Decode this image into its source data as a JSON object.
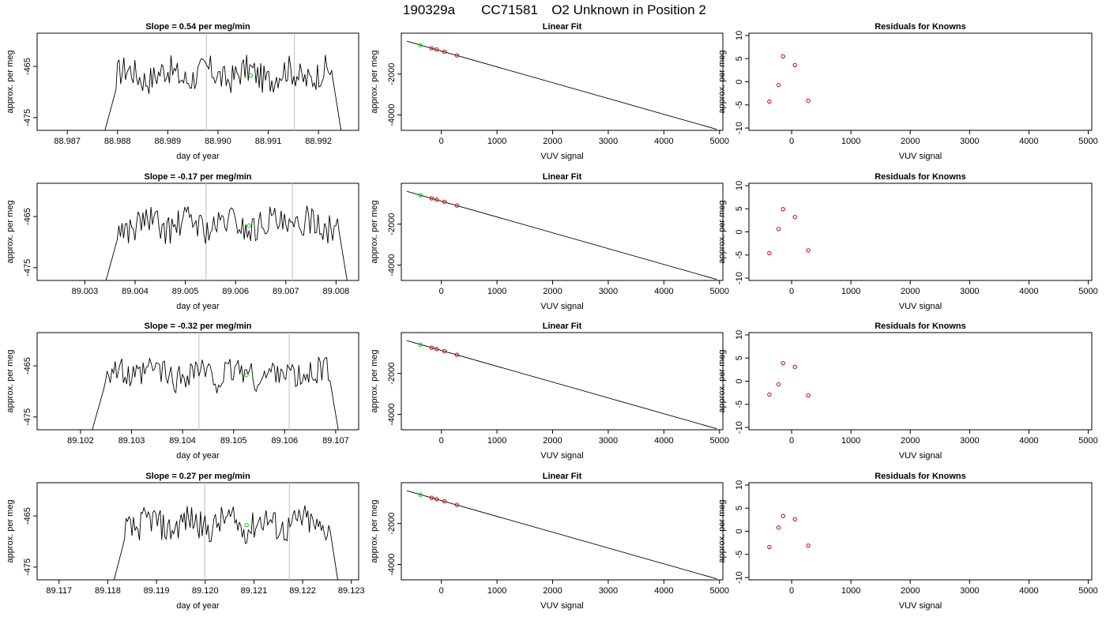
{
  "figure": {
    "title_parts": [
      "190329a",
      "CC71581",
      "O2 Unknown in Position  2"
    ]
  },
  "panel_titles": {
    "linear_fit": "Linear Fit",
    "residuals": "Residuals for Knowns"
  },
  "axis_labels": {
    "time_x": "day of year",
    "time_y": "approx. per meg",
    "fit_x": "VUV signal",
    "fit_y": "approx. per meg",
    "res_x": "VUV signal",
    "res_y": "approx. per meg"
  },
  "colors": {
    "line": "#000000",
    "known_points": "#cc0000",
    "unknown_point": "#00cc00",
    "vline": "#c8c8c8"
  },
  "chart_data": [
    {
      "row": 1,
      "time_series": {
        "type": "line",
        "title": "Slope =  0.54  per meg/min",
        "xlabel": "day of year",
        "ylabel": "approx. per meg",
        "xlim": [
          88.9864,
          88.9928
        ],
        "ylim": [
          -477.5,
          -458.5
        ],
        "xticks": [
          "88.987",
          "88.988",
          "88.989",
          "88.990",
          "88.991",
          "88.992"
        ],
        "yticks": [
          "-465",
          "-475"
        ],
        "data_start": 88.98775,
        "data_end": 88.99245,
        "vlines": [
          88.98977,
          88.99152
        ],
        "unknown_point": {
          "x": 88.99065,
          "y": -466.8
        }
      },
      "linear_fit": {
        "type": "scatter",
        "title": "Linear Fit",
        "xlabel": "VUV signal",
        "ylabel": "approx. per meg",
        "xlim": [
          -720,
          5060
        ],
        "ylim": [
          -4750,
          -5
        ],
        "xticks": [
          "0",
          "1000",
          "2000",
          "3000",
          "4000",
          "5000"
        ],
        "yticks": [
          "-2000",
          "-4000"
        ],
        "line": {
          "x": [
            -620,
            4950
          ],
          "y": [
            -400,
            -4700
          ]
        },
        "knowns": [
          {
            "x": -175,
            "y": -740
          },
          {
            "x": -85,
            "y": -805
          },
          {
            "x": 55,
            "y": -915
          },
          {
            "x": 280,
            "y": -1090
          }
        ],
        "unknown": [
          {
            "x": -375,
            "y": -590
          }
        ]
      },
      "residuals": {
        "type": "scatter",
        "title": "Residuals for Knowns",
        "xlabel": "VUV signal",
        "ylabel": "approx. per meg",
        "xlim": [
          -720,
          5060
        ],
        "ylim": [
          -10.5,
          10.5
        ],
        "xticks": [
          "0",
          "1000",
          "2000",
          "3000",
          "4000",
          "5000"
        ],
        "yticks": [
          "10",
          "5",
          "0",
          "-5",
          "-10"
        ],
        "points": [
          {
            "x": -375,
            "y": -4.3
          },
          {
            "x": -220,
            "y": -0.7
          },
          {
            "x": -145,
            "y": 5.5
          },
          {
            "x": 55,
            "y": 3.6
          },
          {
            "x": 280,
            "y": -4.1
          }
        ]
      }
    },
    {
      "row": 2,
      "time_series": {
        "type": "line",
        "title": "Slope =  -0.17  per meg/min",
        "xlabel": "day of year",
        "ylabel": "approx. per meg",
        "xlim": [
          89.00205,
          89.00845
        ],
        "ylim": [
          -477.5,
          -458.5
        ],
        "xticks": [
          "89.003",
          "89.004",
          "89.005",
          "89.006",
          "89.007",
          "89.008"
        ],
        "yticks": [
          "-465",
          "-475"
        ],
        "data_start": 89.00342,
        "data_end": 89.00822,
        "vlines": [
          89.00541,
          89.00713
        ],
        "unknown_point": {
          "x": 89.00627,
          "y": -466.8
        }
      },
      "linear_fit": {
        "type": "scatter",
        "title": "Linear Fit",
        "xlabel": "VUV signal",
        "ylabel": "approx. per meg",
        "xlim": [
          -720,
          5060
        ],
        "ylim": [
          -4750,
          -5
        ],
        "xticks": [
          "0",
          "1000",
          "2000",
          "3000",
          "4000",
          "5000"
        ],
        "yticks": [
          "-2000",
          "-4000"
        ],
        "line": {
          "x": [
            -620,
            4950
          ],
          "y": [
            -400,
            -4700
          ]
        },
        "knowns": [
          {
            "x": -175,
            "y": -740
          },
          {
            "x": -85,
            "y": -805
          },
          {
            "x": 55,
            "y": -915
          },
          {
            "x": 280,
            "y": -1090
          }
        ],
        "unknown": [
          {
            "x": -375,
            "y": -590
          }
        ]
      },
      "residuals": {
        "type": "scatter",
        "title": "Residuals for Knowns",
        "xlabel": "VUV signal",
        "ylabel": "approx. per meg",
        "xlim": [
          -720,
          5060
        ],
        "ylim": [
          -10.5,
          10.5
        ],
        "xticks": [
          "0",
          "1000",
          "2000",
          "3000",
          "4000",
          "5000"
        ],
        "yticks": [
          "10",
          "5",
          "0",
          "-5",
          "-10"
        ],
        "points": [
          {
            "x": -375,
            "y": -4.6
          },
          {
            "x": -220,
            "y": 0.6
          },
          {
            "x": -145,
            "y": 4.9
          },
          {
            "x": 55,
            "y": 3.2
          },
          {
            "x": 280,
            "y": -4.0
          }
        ]
      }
    },
    {
      "row": 3,
      "time_series": {
        "type": "line",
        "title": "Slope =  -0.32  per meg/min",
        "xlabel": "day of year",
        "ylabel": "approx. per meg",
        "xlim": [
          89.10115,
          89.10745
        ],
        "ylim": [
          -477.5,
          -458.5
        ],
        "xticks": [
          "89.102",
          "89.103",
          "89.104",
          "89.105",
          "89.106",
          "89.107"
        ],
        "yticks": [
          "-465",
          "-475"
        ],
        "data_start": 89.10223,
        "data_end": 89.10705,
        "vlines": [
          89.10432,
          89.10609
        ],
        "unknown_point": {
          "x": 89.10525,
          "y": -466.8
        }
      },
      "linear_fit": {
        "type": "scatter",
        "title": "Linear Fit",
        "xlabel": "VUV signal",
        "ylabel": "approx. per meg",
        "xlim": [
          -720,
          5060
        ],
        "ylim": [
          -4750,
          -5
        ],
        "xticks": [
          "0",
          "1000",
          "2000",
          "3000",
          "4000",
          "5000"
        ],
        "yticks": [
          "-2000",
          "-4000"
        ],
        "line": {
          "x": [
            -620,
            4950
          ],
          "y": [
            -400,
            -4700
          ]
        },
        "knowns": [
          {
            "x": -175,
            "y": -740
          },
          {
            "x": -85,
            "y": -805
          },
          {
            "x": 55,
            "y": -915
          },
          {
            "x": 280,
            "y": -1090
          }
        ],
        "unknown": [
          {
            "x": -375,
            "y": -590
          }
        ]
      },
      "residuals": {
        "type": "scatter",
        "title": "Residuals for Knowns",
        "xlabel": "VUV signal",
        "ylabel": "approx. per meg",
        "xlim": [
          -720,
          5060
        ],
        "ylim": [
          -10.5,
          10.5
        ],
        "xticks": [
          "0",
          "1000",
          "2000",
          "3000",
          "4000",
          "5000"
        ],
        "yticks": [
          "10",
          "5",
          "0",
          "-5",
          "-10"
        ],
        "points": [
          {
            "x": -375,
            "y": -2.9
          },
          {
            "x": -220,
            "y": -0.7
          },
          {
            "x": -145,
            "y": 3.9
          },
          {
            "x": 55,
            "y": 3.1
          },
          {
            "x": 280,
            "y": -3.1
          }
        ]
      }
    },
    {
      "row": 4,
      "time_series": {
        "type": "line",
        "title": "Slope =  0.27  per meg/min",
        "xlabel": "day of year",
        "ylabel": "approx. per meg",
        "xlim": [
          89.11655,
          89.12315
        ],
        "ylim": [
          -477.5,
          -458.5
        ],
        "xticks": [
          "89.117",
          "89.118",
          "89.119",
          "89.120",
          "89.121",
          "89.122",
          "89.123"
        ],
        "yticks": [
          "-465",
          "-475"
        ],
        "data_start": 89.11813,
        "data_end": 89.12272,
        "vlines": [
          89.11999,
          89.12173
        ],
        "unknown_point": {
          "x": 89.12085,
          "y": -466.8
        }
      },
      "linear_fit": {
        "type": "scatter",
        "title": "Linear Fit",
        "xlabel": "VUV signal",
        "ylabel": "approx. per meg",
        "xlim": [
          -720,
          5060
        ],
        "ylim": [
          -4750,
          -5
        ],
        "xticks": [
          "0",
          "1000",
          "2000",
          "3000",
          "4000",
          "5000"
        ],
        "yticks": [
          "-2000",
          "-4000"
        ],
        "line": {
          "x": [
            -620,
            4950
          ],
          "y": [
            -400,
            -4700
          ]
        },
        "knowns": [
          {
            "x": -175,
            "y": -740
          },
          {
            "x": -85,
            "y": -805
          },
          {
            "x": 55,
            "y": -915
          },
          {
            "x": 280,
            "y": -1090
          }
        ],
        "unknown": [
          {
            "x": -375,
            "y": -590
          }
        ]
      },
      "residuals": {
        "type": "scatter",
        "title": "Residuals for Knowns",
        "xlabel": "VUV signal",
        "ylabel": "approx. per meg",
        "xlim": [
          -720,
          5060
        ],
        "ylim": [
          -10.5,
          10.5
        ],
        "xticks": [
          "0",
          "1000",
          "2000",
          "3000",
          "4000",
          "5000"
        ],
        "yticks": [
          "10",
          "5",
          "0",
          "-5",
          "-10"
        ],
        "points": [
          {
            "x": -375,
            "y": -3.4
          },
          {
            "x": -220,
            "y": 0.8
          },
          {
            "x": -145,
            "y": 3.3
          },
          {
            "x": 55,
            "y": 2.6
          },
          {
            "x": 280,
            "y": -3.1
          }
        ]
      }
    }
  ]
}
